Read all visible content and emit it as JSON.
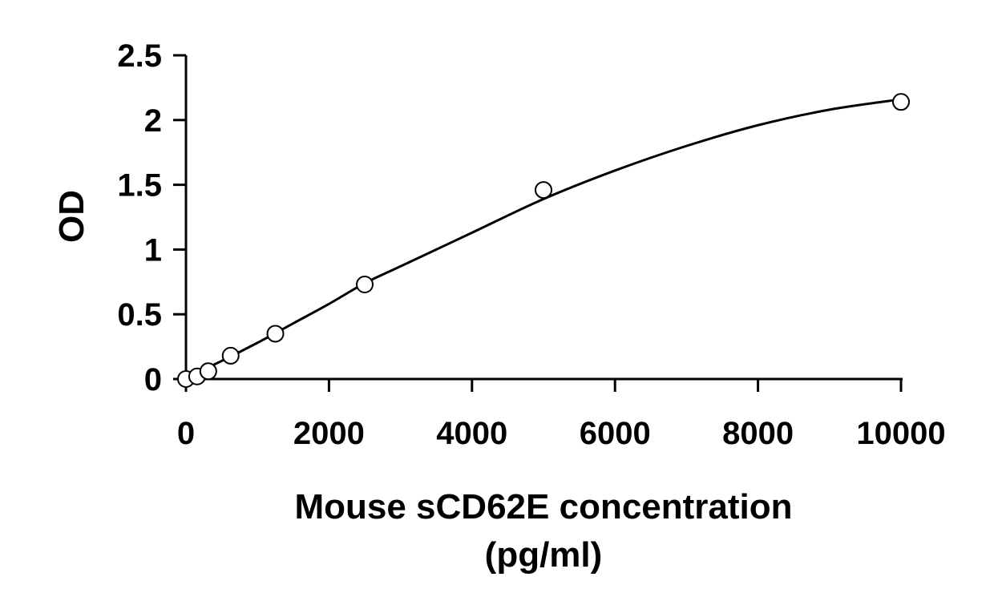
{
  "chart_data": {
    "type": "scatter",
    "title": "",
    "xlabel_line1": "Mouse sCD62E concentration",
    "xlabel_line2": "(pg/ml)",
    "ylabel": "OD",
    "xlim": [
      0,
      10000
    ],
    "ylim": [
      0,
      2.5
    ],
    "xticks": [
      0,
      2000,
      4000,
      6000,
      8000,
      10000
    ],
    "xtick_labels": [
      "0",
      "2000",
      "4000",
      "6000",
      "8000",
      "10000"
    ],
    "yticks": [
      0,
      0.5,
      1,
      1.5,
      2,
      2.5
    ],
    "ytick_labels": [
      "0",
      "0.5",
      "1",
      "1.5",
      "2",
      "2.5"
    ],
    "grid": false,
    "legend": "none",
    "series": [
      {
        "marker": "open-circle",
        "x": [
          0,
          156,
          312,
          625,
          1250,
          2500,
          5000,
          10000
        ],
        "y": [
          0.0,
          0.02,
          0.06,
          0.18,
          0.35,
          0.73,
          1.46,
          2.14
        ]
      }
    ],
    "fit_curve": {
      "x": [
        0,
        500,
        1000,
        1500,
        2000,
        2500,
        3000,
        4000,
        5000,
        6000,
        7000,
        8000,
        9000,
        10000
      ],
      "y": [
        0.01,
        0.14,
        0.28,
        0.43,
        0.58,
        0.74,
        0.87,
        1.13,
        1.39,
        1.61,
        1.8,
        1.96,
        2.08,
        2.16
      ]
    }
  }
}
